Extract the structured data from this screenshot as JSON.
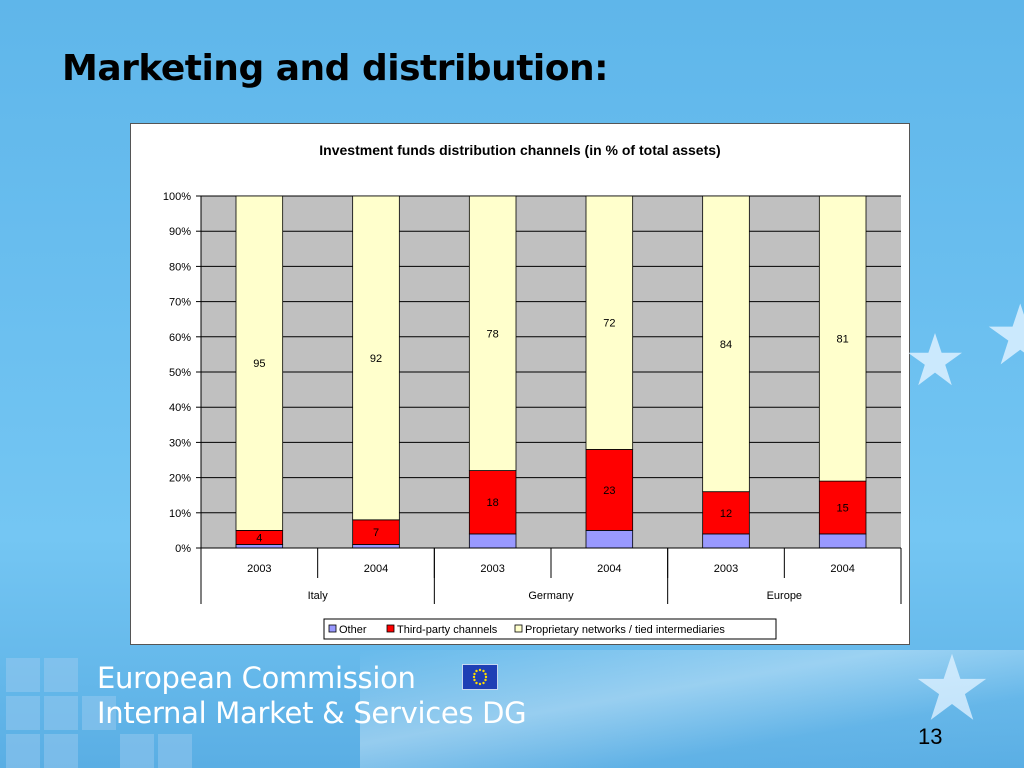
{
  "slide": {
    "title": "Marketing and distribution:",
    "slide_number": "13",
    "footer": {
      "line1": "European Commission",
      "line2": "Internal Market & Services DG"
    }
  },
  "colors": {
    "background": "#6cc0f0",
    "other": "#9999ff",
    "third_party": "#ff0000",
    "proprietary": "#ffffcc",
    "plot_area": "#c0c0c0"
  },
  "icons": {
    "flag": "eu-flag-icon",
    "stars": "star-icon"
  },
  "chart_data": {
    "type": "bar",
    "stacked": true,
    "percent_stacked": true,
    "title": "Investment funds distribution channels (in % of total assets)",
    "xlabel": "",
    "ylabel": "",
    "ylim": [
      0,
      100
    ],
    "y_ticks": [
      "0%",
      "10%",
      "20%",
      "30%",
      "40%",
      "50%",
      "60%",
      "70%",
      "80%",
      "90%",
      "100%"
    ],
    "categories": [
      "2003",
      "2004",
      "2003",
      "2004",
      "2003",
      "2004"
    ],
    "groups": [
      {
        "label": "Italy",
        "span": 2
      },
      {
        "label": "Germany",
        "span": 2
      },
      {
        "label": "Europe",
        "span": 2
      }
    ],
    "series": [
      {
        "name": "Other",
        "color": "#9999ff",
        "values": [
          1,
          1,
          4,
          5,
          4,
          4
        ],
        "labels": [
          "",
          "",
          "",
          "",
          "",
          ""
        ]
      },
      {
        "name": "Third-party channels",
        "color": "#ff0000",
        "values": [
          4,
          7,
          18,
          23,
          12,
          15
        ],
        "labels": [
          "4",
          "7",
          "18",
          "23",
          "12",
          "15"
        ]
      },
      {
        "name": "Proprietary networks / tied intermediaries",
        "color": "#ffffcc",
        "values": [
          95,
          92,
          78,
          72,
          84,
          81
        ],
        "labels": [
          "95",
          "92",
          "78",
          "72",
          "84",
          "81"
        ]
      }
    ],
    "grid": true,
    "legend": "bottom"
  }
}
